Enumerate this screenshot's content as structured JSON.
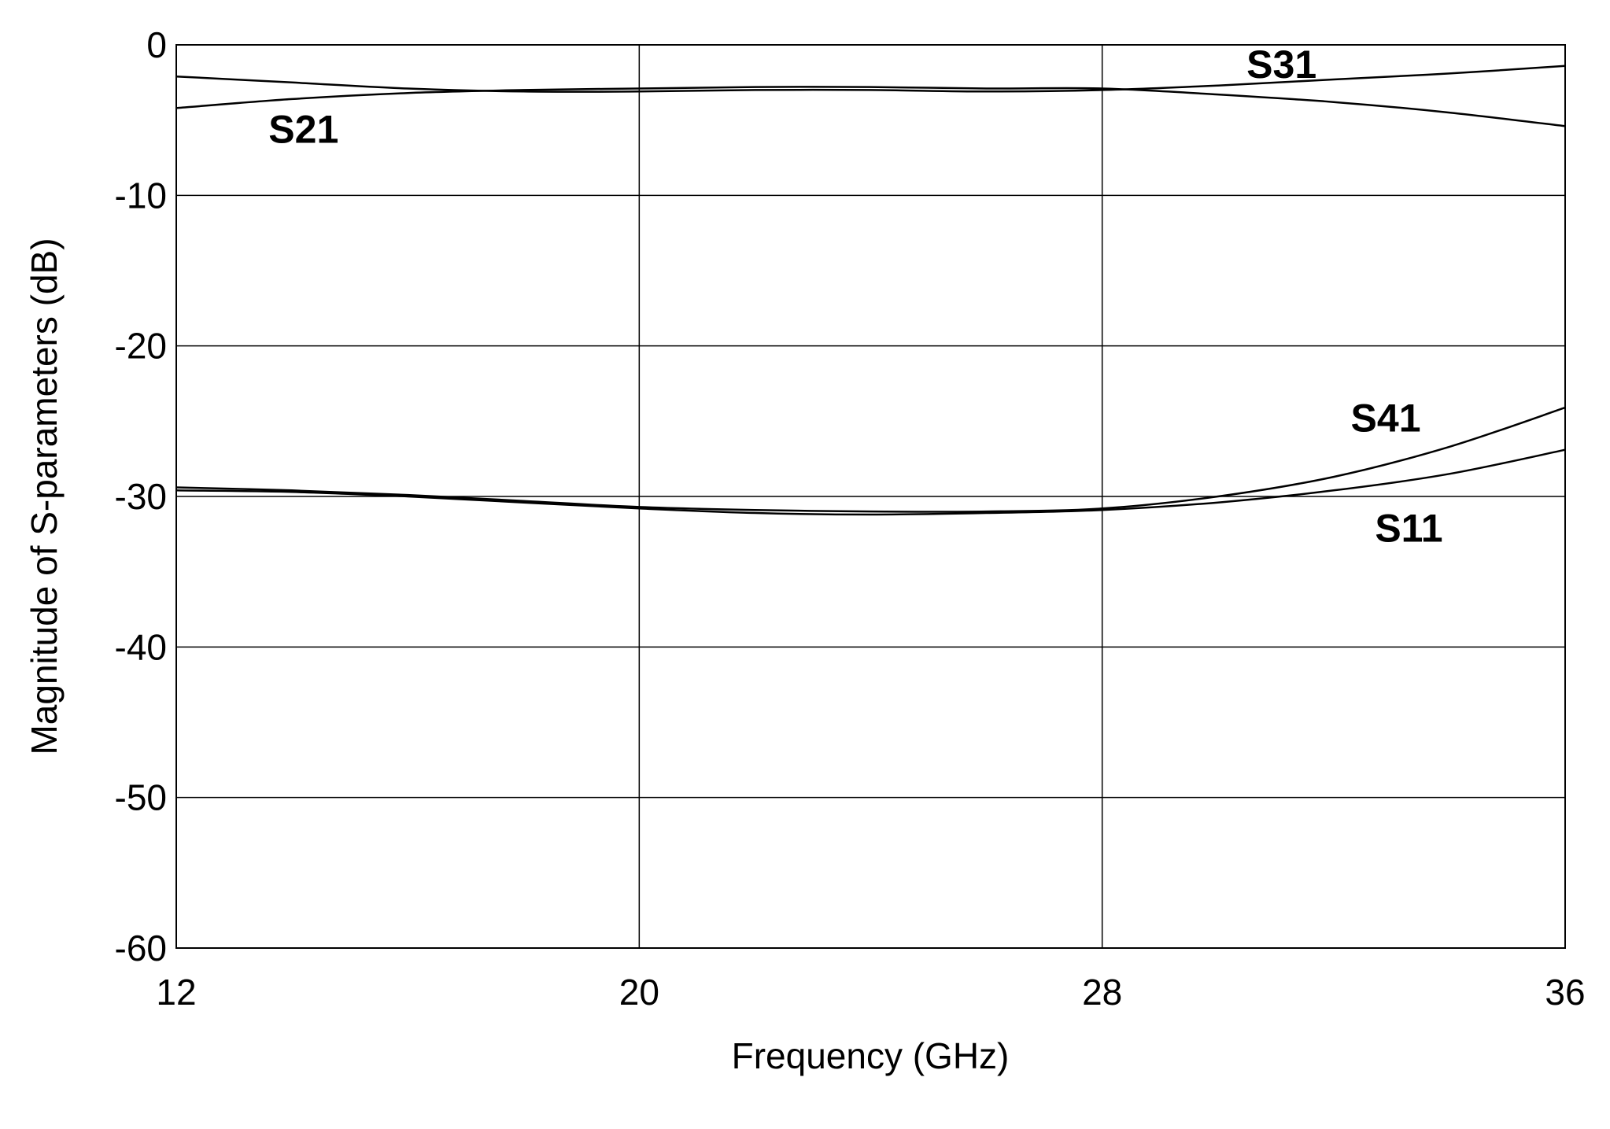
{
  "chart_data": {
    "type": "line",
    "title": "",
    "xlabel": "Frequency (GHz)",
    "ylabel": "Magnitude of S-parameters (dB)",
    "xlim": [
      12,
      36
    ],
    "ylim": [
      -60,
      0
    ],
    "xticks": [
      12,
      20,
      28,
      36
    ],
    "yticks": [
      0,
      -10,
      -20,
      -30,
      -40,
      -50,
      -60
    ],
    "xtick_labels": [
      "12",
      "20",
      "28",
      "36"
    ],
    "ytick_labels": [
      "0",
      "-10",
      "-20",
      "-30",
      "-40",
      "-50",
      "-60"
    ],
    "grid": true,
    "series": [
      {
        "name": "S21",
        "x": [
          12,
          14,
          16,
          18,
          20,
          22,
          24,
          26,
          28,
          30,
          32,
          34,
          36
        ],
        "y": [
          -4.2,
          -3.6,
          -3.2,
          -3.0,
          -2.9,
          -2.8,
          -2.8,
          -2.9,
          -2.9,
          -3.3,
          -3.8,
          -4.5,
          -5.4
        ]
      },
      {
        "name": "S31",
        "x": [
          12,
          14,
          16,
          18,
          20,
          22,
          24,
          26,
          28,
          30,
          32,
          34,
          36
        ],
        "y": [
          -2.1,
          -2.5,
          -2.9,
          -3.1,
          -3.1,
          -3.0,
          -3.0,
          -3.1,
          -3.0,
          -2.7,
          -2.3,
          -1.9,
          -1.4
        ]
      },
      {
        "name": "S41",
        "x": [
          12,
          14,
          16,
          18,
          20,
          22,
          24,
          26,
          28,
          30,
          32,
          34,
          36
        ],
        "y": [
          -29.4,
          -29.6,
          -29.9,
          -30.3,
          -30.7,
          -30.9,
          -31.0,
          -31.0,
          -30.8,
          -30.0,
          -28.7,
          -26.7,
          -24.1
        ]
      },
      {
        "name": "S11",
        "x": [
          12,
          14,
          16,
          18,
          20,
          22,
          24,
          26,
          28,
          30,
          32,
          34,
          36
        ],
        "y": [
          -29.6,
          -29.7,
          -30.0,
          -30.4,
          -30.8,
          -31.1,
          -31.2,
          -31.1,
          -30.9,
          -30.4,
          -29.6,
          -28.5,
          -26.9
        ]
      }
    ],
    "annotations": [
      {
        "text": "S21",
        "series": "S21"
      },
      {
        "text": "S31",
        "series": "S31"
      },
      {
        "text": "S41",
        "series": "S41"
      },
      {
        "text": "S11",
        "series": "S11"
      }
    ]
  }
}
